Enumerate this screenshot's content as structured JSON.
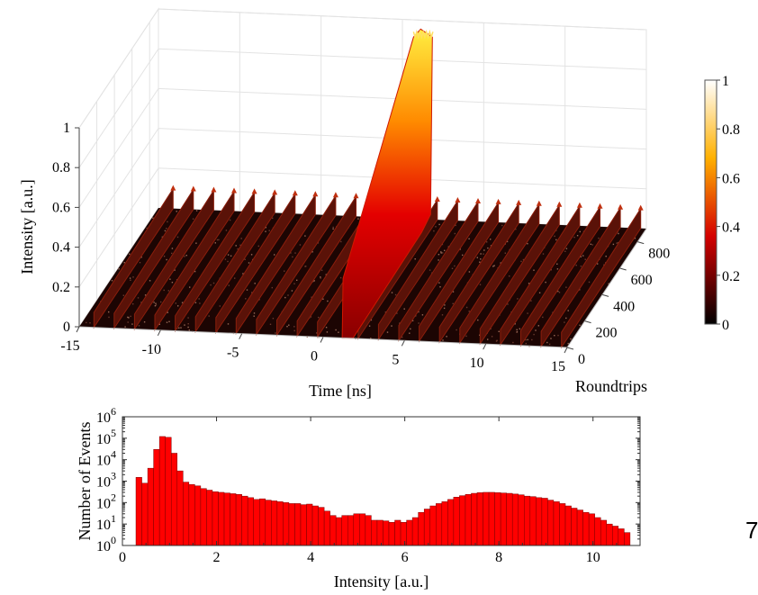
{
  "page_number": "7",
  "chart_data": [
    {
      "type": "surface3d",
      "title": "",
      "xlabel": "Time [ns]",
      "ylabel": "Roundtrips",
      "zlabel": "Intensity [a.u.]",
      "xlim": [
        -15,
        15
      ],
      "ylim": [
        0,
        900
      ],
      "zlim": [
        0,
        1
      ],
      "x_ticks": [
        "-15",
        "-10",
        "-5",
        "0",
        "5",
        "10",
        "15"
      ],
      "y_ticks": [
        "0",
        "200",
        "400",
        "600",
        "800"
      ],
      "z_ticks": [
        "0",
        "0.2",
        "0.4",
        "0.6",
        "0.8",
        "1"
      ],
      "colormap": "hot",
      "colorbar": {
        "ticks": [
          "0",
          "0.2",
          "0.4",
          "0.6",
          "0.8",
          "1"
        ],
        "range": [
          0,
          1
        ]
      },
      "pulse_train": {
        "period_ns": 1.25,
        "peak_intensity": 0.1
      },
      "rogue_event": {
        "time_ns": 1.5,
        "roundtrip_start": 0,
        "roundtrip_end": 800,
        "peak_intensity": 1.0
      },
      "grid": true
    },
    {
      "type": "bar",
      "title": "",
      "xlabel": "Intensity [a.u.]",
      "ylabel": "Number of Events",
      "xlim": [
        0,
        11
      ],
      "ylim": [
        1,
        1000000
      ],
      "yscale": "log",
      "x_ticks": [
        "0",
        "2",
        "4",
        "6",
        "8",
        "10"
      ],
      "y_tick_exponents": [
        "0",
        "1",
        "2",
        "3",
        "4",
        "5",
        "6"
      ],
      "bar_color": "#ff0000",
      "bin_width": 0.125,
      "x": [
        0.35,
        0.475,
        0.6,
        0.725,
        0.85,
        0.975,
        1.1,
        1.225,
        1.35,
        1.475,
        1.6,
        1.725,
        1.85,
        1.975,
        2.1,
        2.225,
        2.35,
        2.475,
        2.6,
        2.725,
        2.85,
        2.975,
        3.1,
        3.225,
        3.35,
        3.475,
        3.6,
        3.725,
        3.85,
        3.975,
        4.1,
        4.225,
        4.35,
        4.475,
        4.6,
        4.725,
        4.85,
        4.975,
        5.1,
        5.225,
        5.35,
        5.475,
        5.6,
        5.725,
        5.85,
        5.975,
        6.1,
        6.225,
        6.35,
        6.475,
        6.6,
        6.725,
        6.85,
        6.975,
        7.1,
        7.225,
        7.35,
        7.475,
        7.6,
        7.725,
        7.85,
        7.975,
        8.1,
        8.225,
        8.35,
        8.475,
        8.6,
        8.725,
        8.85,
        8.975,
        9.1,
        9.225,
        9.35,
        9.475,
        9.6,
        9.725,
        9.85,
        9.975,
        10.1,
        10.225,
        10.35,
        10.475,
        10.6,
        10.725
      ],
      "values": [
        1500,
        800,
        4000,
        30000,
        120000,
        110000,
        20000,
        3000,
        900,
        700,
        600,
        450,
        380,
        320,
        300,
        280,
        260,
        240,
        200,
        170,
        140,
        150,
        130,
        120,
        110,
        100,
        90,
        90,
        80,
        85,
        70,
        60,
        40,
        25,
        20,
        25,
        25,
        30,
        30,
        25,
        15,
        15,
        14,
        12,
        15,
        12,
        15,
        20,
        35,
        50,
        70,
        90,
        110,
        140,
        180,
        210,
        240,
        270,
        290,
        300,
        300,
        290,
        280,
        270,
        250,
        230,
        200,
        190,
        170,
        160,
        130,
        110,
        90,
        70,
        55,
        45,
        35,
        30,
        20,
        15,
        10,
        8,
        6,
        4
      ]
    }
  ]
}
